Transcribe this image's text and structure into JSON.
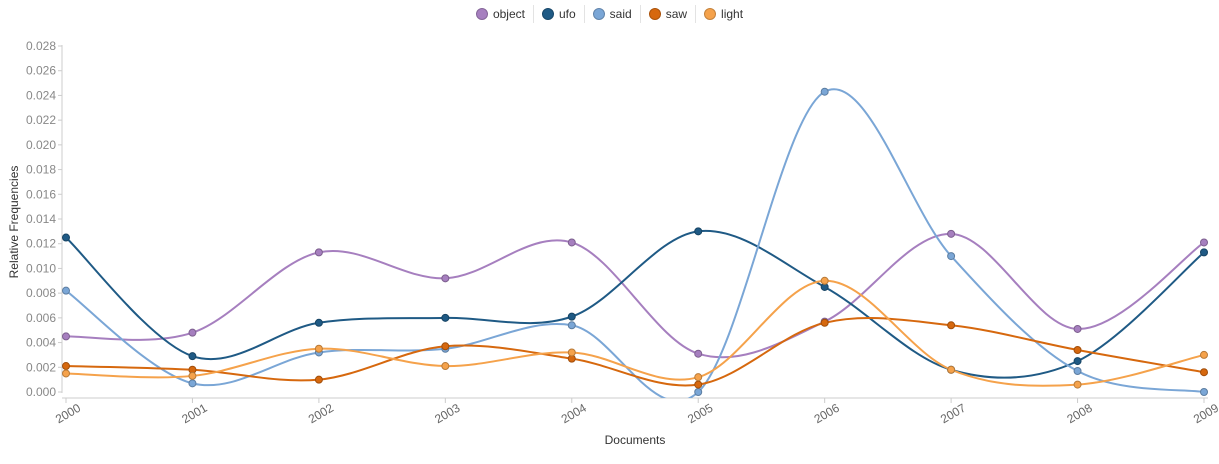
{
  "chart_data": {
    "type": "line",
    "xlabel": "Documents",
    "ylabel": "Relative Frequencies",
    "categories": [
      "2000",
      "2001",
      "2002",
      "2003",
      "2004",
      "2005",
      "2006",
      "2007",
      "2008",
      "2009"
    ],
    "ylim": [
      0,
      0.028
    ],
    "yticks": [
      "0.000",
      "0.002",
      "0.004",
      "0.006",
      "0.008",
      "0.010",
      "0.012",
      "0.014",
      "0.016",
      "0.018",
      "0.020",
      "0.022",
      "0.024",
      "0.026",
      "0.028"
    ],
    "legend_position": "top-center",
    "grid": false,
    "series": [
      {
        "name": "object",
        "color": "#a67fbf",
        "values": [
          0.0045,
          0.0048,
          0.0113,
          0.0092,
          0.0121,
          0.0031,
          0.0057,
          0.0128,
          0.0051,
          0.0121
        ]
      },
      {
        "name": "ufo",
        "color": "#1f5a85",
        "values": [
          0.0125,
          0.0029,
          0.0056,
          0.006,
          0.0061,
          0.013,
          0.0085,
          0.0018,
          0.0025,
          0.0113
        ]
      },
      {
        "name": "said",
        "color": "#7aa6d6",
        "values": [
          0.0082,
          0.0007,
          0.0032,
          0.0035,
          0.0054,
          0.0,
          0.0243,
          0.011,
          0.0017,
          0.0
        ]
      },
      {
        "name": "saw",
        "color": "#d6680e",
        "values": [
          0.0021,
          0.0018,
          0.001,
          0.0037,
          0.0027,
          0.0006,
          0.0056,
          0.0054,
          0.0034,
          0.0016
        ]
      },
      {
        "name": "light",
        "color": "#f5a24b",
        "values": [
          0.0015,
          0.0013,
          0.0035,
          0.0021,
          0.0032,
          0.0012,
          0.009,
          0.0018,
          0.0006,
          0.003
        ]
      }
    ]
  }
}
